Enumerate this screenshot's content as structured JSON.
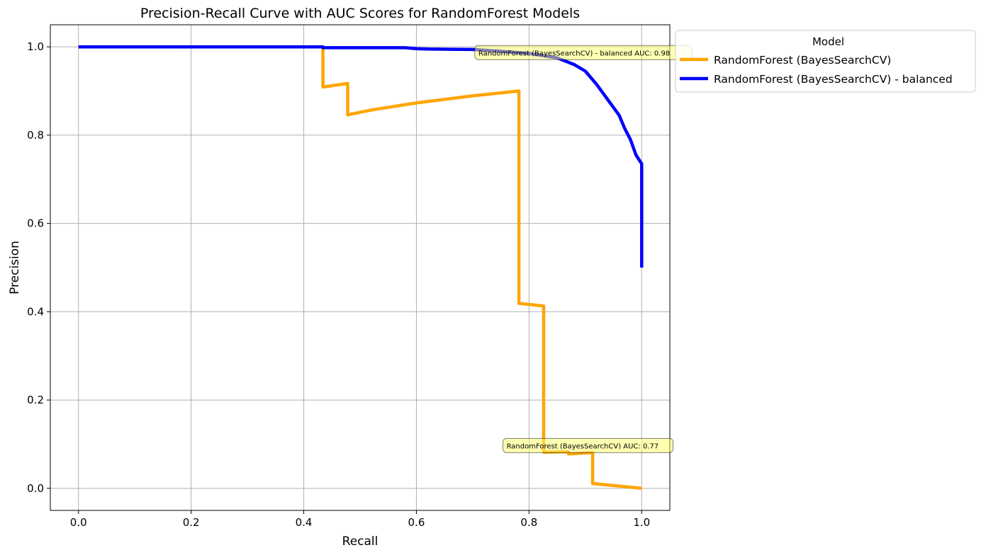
{
  "chart_data": {
    "type": "line",
    "title": "Precision-Recall Curve with AUC Scores for RandomForest Models",
    "xlabel": "Recall",
    "ylabel": "Precision",
    "xlim": [
      -0.05,
      1.05
    ],
    "ylim": [
      -0.05,
      1.05
    ],
    "grid": true,
    "x_ticks": [
      0.0,
      0.2,
      0.4,
      0.6,
      0.8,
      1.0
    ],
    "x_tick_labels": [
      "0.0",
      "0.2",
      "0.4",
      "0.6",
      "0.8",
      "1.0"
    ],
    "y_ticks": [
      0.0,
      0.2,
      0.4,
      0.6,
      0.8,
      1.0
    ],
    "y_tick_labels": [
      "0.0",
      "0.2",
      "0.4",
      "0.6",
      "0.8",
      "1.0"
    ],
    "legend": {
      "title": "Model",
      "placement": "outside upper right"
    },
    "series": [
      {
        "name": "RandomForest (BayesSearchCV)",
        "color": "#FFA500",
        "x": [
          0.0,
          0.434,
          0.434,
          0.478,
          0.478,
          0.52,
          0.6,
          0.7,
          0.782,
          0.782,
          0.826,
          0.826,
          0.87,
          0.87,
          0.913,
          0.913,
          1.0
        ],
        "y": [
          1.0,
          1.0,
          0.909,
          0.917,
          0.846,
          0.857,
          0.873,
          0.889,
          0.9,
          0.419,
          0.413,
          0.082,
          0.083,
          0.078,
          0.081,
          0.011,
          0.0
        ]
      },
      {
        "name": "RandomForest (BayesSearchCV) - balanced",
        "color": "#0000FF",
        "x": [
          0.0,
          0.434,
          0.434,
          0.58,
          0.6,
          0.62,
          0.7,
          0.75,
          0.8,
          0.85,
          0.88,
          0.9,
          0.92,
          0.94,
          0.96,
          0.97,
          0.98,
          0.99,
          1.0,
          1.0
        ],
        "y": [
          1.0,
          1.0,
          0.998,
          0.998,
          0.996,
          0.995,
          0.994,
          0.99,
          0.985,
          0.975,
          0.96,
          0.945,
          0.915,
          0.88,
          0.845,
          0.815,
          0.79,
          0.755,
          0.735,
          0.5
        ]
      }
    ],
    "annotations": [
      {
        "text": "RandomForest (BayesSearchCV) - balanced AUC: 0.98",
        "x": 0.71,
        "y": 0.987,
        "color": "#FFFF66"
      },
      {
        "text": "RandomForest (BayesSearchCV) AUC: 0.77",
        "x": 0.76,
        "y": 0.097,
        "color": "#FFFF66"
      }
    ]
  }
}
